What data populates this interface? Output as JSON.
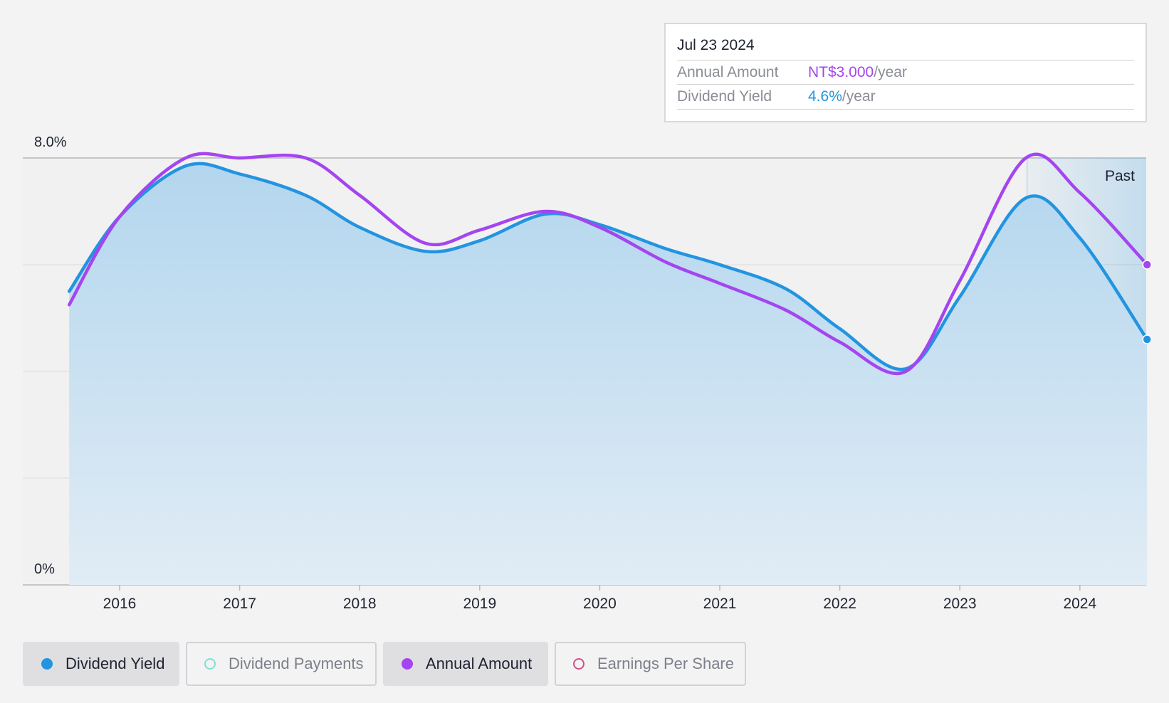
{
  "chart_data": {
    "type": "area",
    "y_axis": {
      "top_label": "8.0%",
      "bottom_label": "0%",
      "ylim": [
        0,
        8
      ]
    },
    "x_axis": {
      "ticks": [
        "2016",
        "2017",
        "2018",
        "2019",
        "2020",
        "2021",
        "2022",
        "2023",
        "2024"
      ],
      "xlim": [
        2015.58,
        2024.56
      ]
    },
    "grid": true,
    "past_region": {
      "label": "Past",
      "start": 2023.56,
      "end": 2024.56
    },
    "series": [
      {
        "name": "Dividend Yield",
        "color": "#2394e0",
        "filled": true,
        "points": [
          [
            2015.58,
            5.5
          ],
          [
            2016.0,
            6.9
          ],
          [
            2016.55,
            7.85
          ],
          [
            2017.0,
            7.7
          ],
          [
            2017.55,
            7.3
          ],
          [
            2018.0,
            6.7
          ],
          [
            2018.55,
            6.25
          ],
          [
            2019.0,
            6.45
          ],
          [
            2019.55,
            6.95
          ],
          [
            2020.0,
            6.75
          ],
          [
            2020.55,
            6.3
          ],
          [
            2021.0,
            6.0
          ],
          [
            2021.55,
            5.55
          ],
          [
            2022.0,
            4.8
          ],
          [
            2022.55,
            4.05
          ],
          [
            2023.0,
            5.4
          ],
          [
            2023.55,
            7.25
          ],
          [
            2024.0,
            6.5
          ],
          [
            2024.56,
            4.6
          ]
        ]
      },
      {
        "name": "Annual Amount",
        "color": "#a445f0",
        "filled": false,
        "points": [
          [
            2015.58,
            5.25
          ],
          [
            2016.0,
            6.9
          ],
          [
            2016.55,
            8.0
          ],
          [
            2017.0,
            8.0
          ],
          [
            2017.55,
            8.0
          ],
          [
            2018.0,
            7.3
          ],
          [
            2018.55,
            6.4
          ],
          [
            2019.0,
            6.65
          ],
          [
            2019.55,
            7.0
          ],
          [
            2020.0,
            6.7
          ],
          [
            2020.55,
            6.05
          ],
          [
            2021.0,
            5.65
          ],
          [
            2021.55,
            5.15
          ],
          [
            2022.0,
            4.55
          ],
          [
            2022.55,
            4.0
          ],
          [
            2023.0,
            5.7
          ],
          [
            2023.55,
            8.0
          ],
          [
            2024.0,
            7.35
          ],
          [
            2024.56,
            6.0
          ]
        ]
      }
    ]
  },
  "tooltip": {
    "date": "Jul 23 2024",
    "annual_amount_label": "Annual Amount",
    "annual_amount_value": "NT$3.000",
    "annual_amount_unit": "/year",
    "dividend_yield_label": "Dividend Yield",
    "dividend_yield_value": "4.6%",
    "dividend_yield_unit": "/year"
  },
  "legend": [
    {
      "label": "Dividend Yield",
      "active": true,
      "color": "#2394e0",
      "filled": true
    },
    {
      "label": "Dividend Payments",
      "active": false,
      "color": "#7ee0d6",
      "filled": false
    },
    {
      "label": "Annual Amount",
      "active": true,
      "color": "#a445f0",
      "filled": true
    },
    {
      "label": "Earnings Per Share",
      "active": false,
      "color": "#d0508c",
      "filled": false
    }
  ]
}
